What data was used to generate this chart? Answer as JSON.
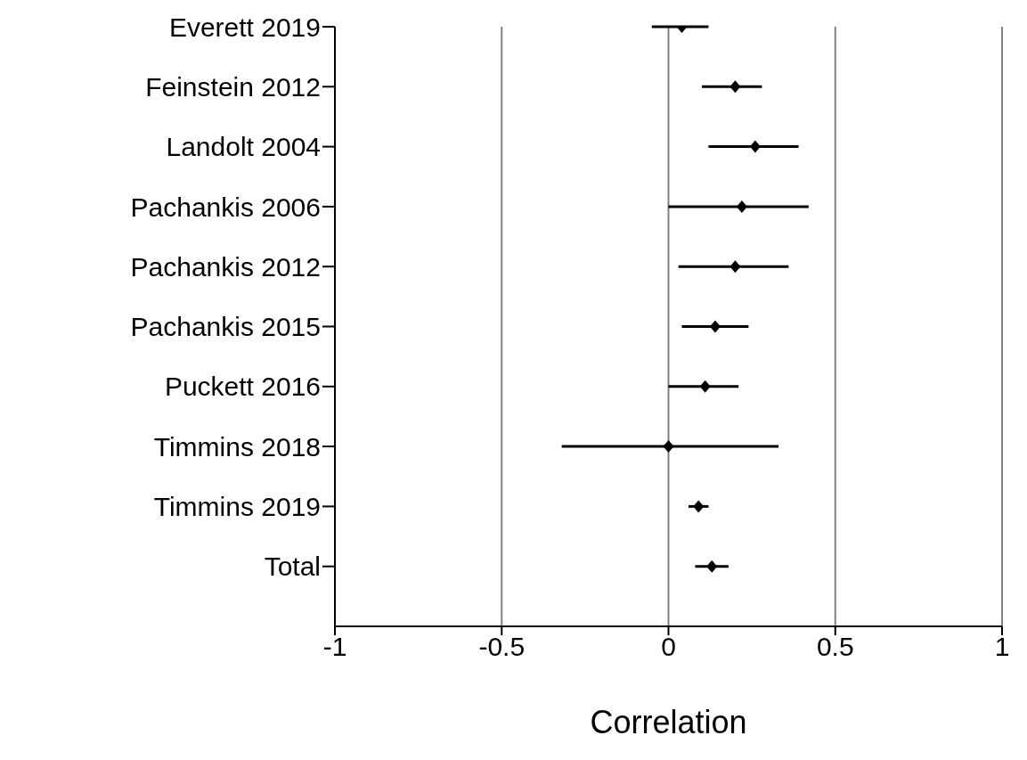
{
  "chart_data": {
    "type": "scatter",
    "orientation": "horizontal",
    "xlabel": "Correlation",
    "categories": [
      "Everett 2019",
      "Feinstein 2012",
      "Landolt 2004",
      "Pachankis 2006",
      "Pachankis 2012",
      "Pachankis 2015",
      "Puckett 2016",
      "Timmins 2018",
      "Timmins 2019",
      "Total"
    ],
    "values": [
      0.04,
      0.2,
      0.26,
      0.22,
      0.2,
      0.14,
      0.11,
      0,
      0.09,
      0.13
    ],
    "errors": [
      [
        -0.05,
        0.12
      ],
      [
        0.1,
        0.28
      ],
      [
        0.12,
        0.39
      ],
      [
        0,
        0.42
      ],
      [
        0.03,
        0.36
      ],
      [
        0.04,
        0.24
      ],
      [
        0,
        0.21
      ],
      [
        -0.32,
        0.33
      ],
      [
        0.06,
        0.12
      ],
      [
        0.08,
        0.18
      ]
    ],
    "color": "#000000",
    "marker": "diamond",
    "xlim": [
      -1,
      1
    ],
    "xticks": [
      -1,
      -0.5,
      0,
      0.5,
      1
    ],
    "grid": "x"
  }
}
